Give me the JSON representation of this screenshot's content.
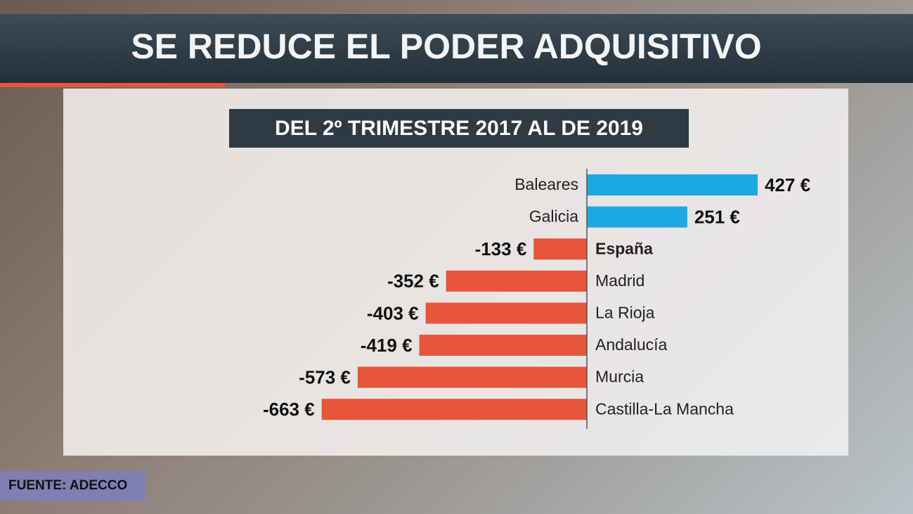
{
  "chart_data": {
    "type": "bar",
    "orientation": "horizontal",
    "title": "SE REDUCE EL PODER ADQUISITIVO",
    "subtitle": "DEL 2º TRIMESTRE 2017 AL DE 2019",
    "source": "FUENTE: ADECCO",
    "categories": [
      "Baleares",
      "Galicia",
      "España",
      "Madrid",
      "La Rioja",
      "Andalucía",
      "Murcia",
      "Castilla-La Mancha"
    ],
    "values": [
      427,
      251,
      -133,
      -352,
      -403,
      -419,
      -573,
      -663
    ],
    "value_labels": [
      "427 €",
      "251 €",
      "-133 €",
      "-352 €",
      "-403 €",
      "-419 €",
      "-573 €",
      "-663 €"
    ],
    "positive_color": "#1ca9e1",
    "negative_color": "#e8553a"
  }
}
